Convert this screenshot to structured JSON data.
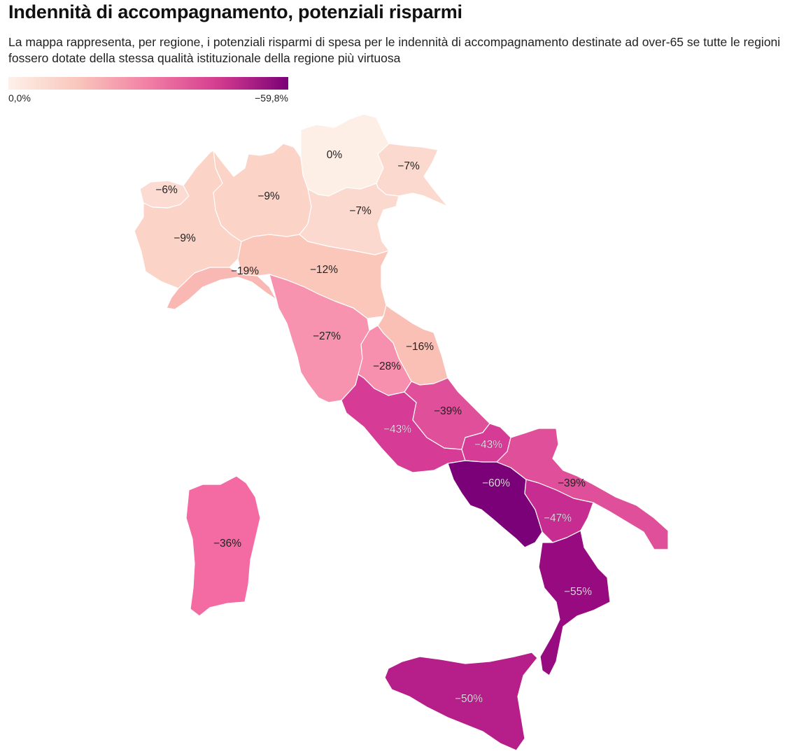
{
  "title": "Indennità di accompagnamento, potenziali risparmi",
  "subtitle": "La mappa rappresenta, per regione, i potenziali risparmi di spesa per le indennità di accompagnamento destinate ad over-65 se tutte le regioni fossero dotate della stessa qualità istituzionale della regione più virtuosa",
  "legend": {
    "min_label": "0,0%",
    "max_label": "−59,8%",
    "min_value": 0.0,
    "max_value": -59.8,
    "colors": [
      "#fdf1ea",
      "#f9c6bb",
      "#f27fa5",
      "#d43c8f",
      "#7a0177"
    ]
  },
  "map_data": {
    "type": "choropleth",
    "unit": "%",
    "regions": [
      {
        "id": "trentino-alto-adige",
        "label": "0%",
        "value": 0,
        "color": "#fdeee6"
      },
      {
        "id": "friuli-venezia-giulia",
        "label": "−7%",
        "value": -7,
        "color": "#fcd9ce"
      },
      {
        "id": "valle-d-aosta",
        "label": "−6%",
        "value": -6,
        "color": "#fcdcd2"
      },
      {
        "id": "lombardia",
        "label": "−9%",
        "value": -9,
        "color": "#fbd3c7"
      },
      {
        "id": "veneto",
        "label": "−7%",
        "value": -7,
        "color": "#fcd9ce"
      },
      {
        "id": "piemonte",
        "label": "−9%",
        "value": -9,
        "color": "#fbd3c7"
      },
      {
        "id": "liguria",
        "label": "−19%",
        "value": -19,
        "color": "#fab8b4"
      },
      {
        "id": "emilia-romagna",
        "label": "−12%",
        "value": -12,
        "color": "#fbc7bb"
      },
      {
        "id": "toscana",
        "label": "−27%",
        "value": -27,
        "color": "#f893af"
      },
      {
        "id": "marche",
        "label": "−16%",
        "value": -16,
        "color": "#fac0b6"
      },
      {
        "id": "umbria",
        "label": "−28%",
        "value": -28,
        "color": "#f78fae"
      },
      {
        "id": "lazio",
        "label": "−43%",
        "value": -43,
        "color": "#d63b95"
      },
      {
        "id": "abruzzo",
        "label": "−39%",
        "value": -39,
        "color": "#e0509a"
      },
      {
        "id": "molise",
        "label": "−43%",
        "value": -43,
        "color": "#d63b95"
      },
      {
        "id": "campania",
        "label": "−60%",
        "value": -60,
        "color": "#7a0177"
      },
      {
        "id": "puglia",
        "label": "−39%",
        "value": -39,
        "color": "#e0509a"
      },
      {
        "id": "basilicata",
        "label": "−47%",
        "value": -47,
        "color": "#c72d90"
      },
      {
        "id": "calabria",
        "label": "−55%",
        "value": -55,
        "color": "#980a80"
      },
      {
        "id": "sicilia",
        "label": "−50%",
        "value": -50,
        "color": "#b61f89"
      },
      {
        "id": "sardegna",
        "label": "−36%",
        "value": -36,
        "color": "#f46aa3"
      }
    ]
  }
}
